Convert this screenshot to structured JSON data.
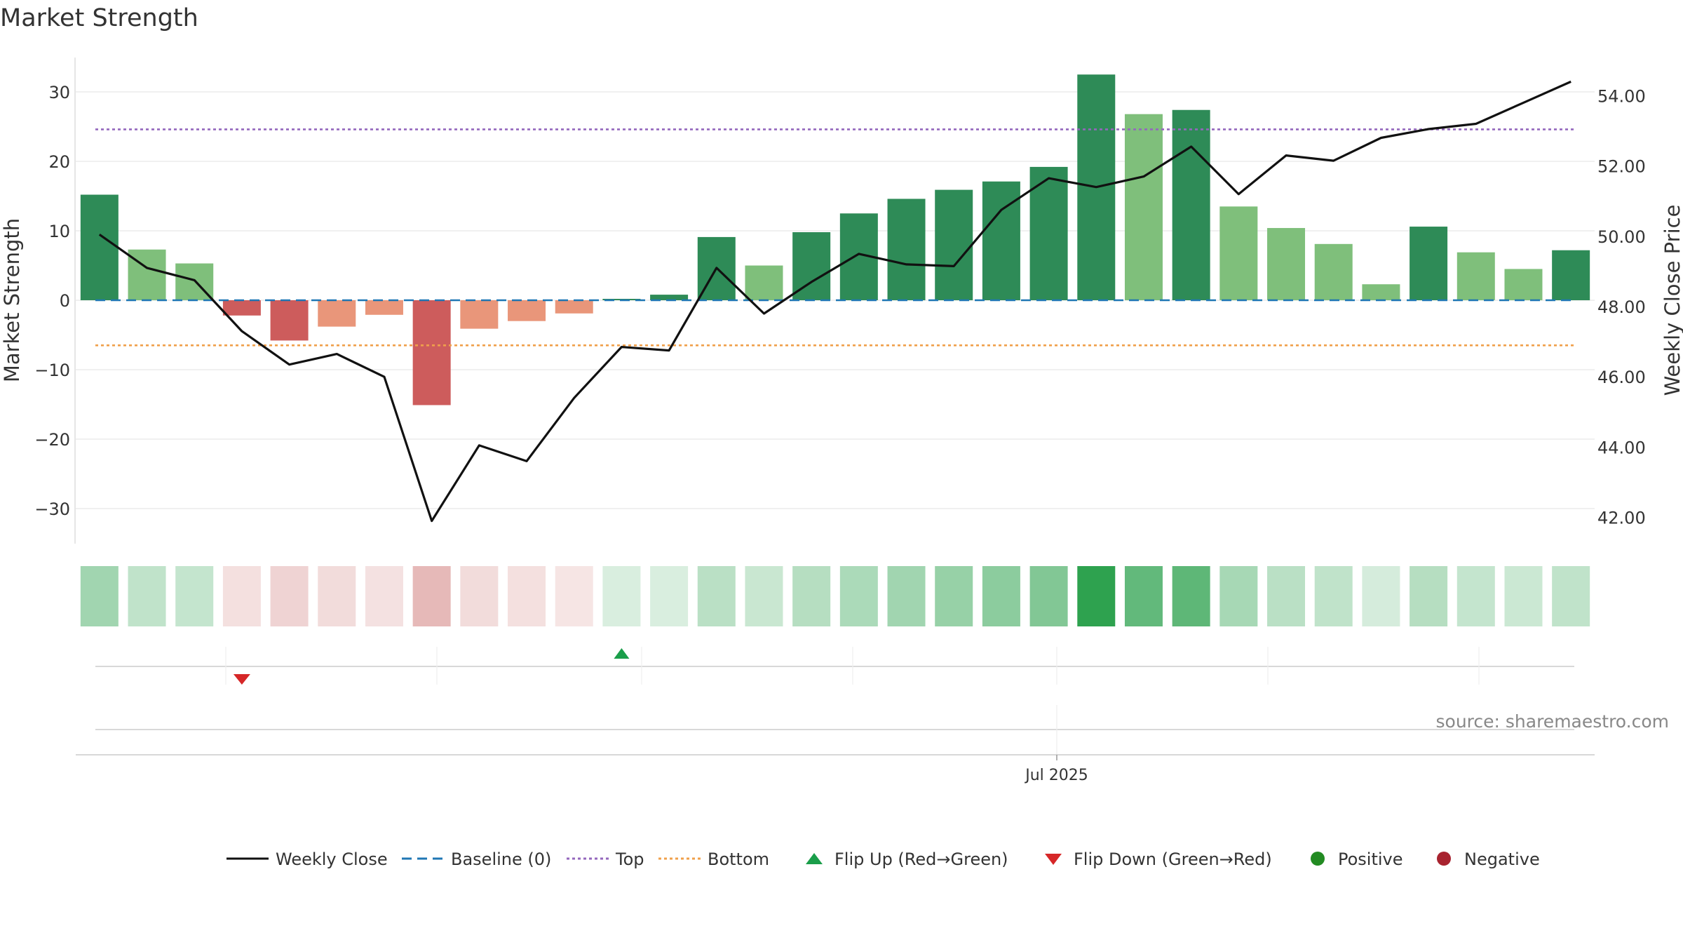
{
  "title": "Market Strength",
  "source": "source: sharemaestro.com",
  "chart_data": {
    "type": "bar",
    "title": "Market Strength",
    "ylabel": "Market Strength",
    "y2label": "Weekly Close Price",
    "ylim": [
      -35,
      35
    ],
    "y2lim": [
      40.7,
      55.0
    ],
    "yticks": [
      -30,
      -20,
      -10,
      0,
      10,
      20,
      30
    ],
    "yticklabels": [
      "−30",
      "−20",
      "−10",
      "0",
      "10",
      "20",
      "30"
    ],
    "y2ticks": [
      42,
      44,
      46,
      48,
      50,
      52,
      54
    ],
    "y2ticklabels": [
      "42.00",
      "44.00",
      "46.00",
      "48.00",
      "50.00",
      "52.00",
      "54.00"
    ],
    "xtick_label": "Jul 2025",
    "xtick_index": 20,
    "grid": true,
    "series": [
      {
        "name": "Market Strength",
        "values": [
          15.2,
          7.3,
          5.3,
          -2.2,
          -5.8,
          -3.8,
          -2.1,
          -15.1,
          -4.1,
          -3.0,
          -1.9,
          0.2,
          0.8,
          9.1,
          5.0,
          9.8,
          12.5,
          14.6,
          15.9,
          17.1,
          19.2,
          32.5,
          26.8,
          27.4,
          13.5,
          10.4,
          8.1,
          2.3,
          10.6,
          6.9,
          4.5,
          7.2
        ],
        "shades": [
          "dark-green",
          "light-green",
          "light-green",
          "red",
          "red",
          "light-red",
          "light-red",
          "red",
          "light-red",
          "light-red",
          "light-red",
          "dark-green",
          "dark-green",
          "dark-green",
          "light-green",
          "dark-green",
          "dark-green",
          "dark-green",
          "dark-green",
          "dark-green",
          "dark-green",
          "dark-green",
          "light-green",
          "dark-green",
          "light-green",
          "light-green",
          "light-green",
          "light-green",
          "dark-green",
          "light-green",
          "light-green",
          "dark-green"
        ]
      },
      {
        "name": "Weekly Close",
        "values": [
          50.05,
          49.1,
          48.75,
          47.3,
          46.35,
          46.65,
          46.0,
          41.9,
          44.05,
          43.6,
          45.4,
          46.85,
          46.75,
          49.1,
          47.8,
          48.7,
          49.5,
          49.2,
          49.15,
          50.75,
          51.65,
          51.4,
          51.7,
          52.55,
          51.2,
          52.3,
          52.15,
          52.8,
          53.05,
          53.2,
          53.8,
          54.4
        ]
      }
    ],
    "heat_strip": [
      {
        "tone": "green",
        "level": 0.45
      },
      {
        "tone": "green",
        "level": 0.3
      },
      {
        "tone": "green",
        "level": 0.28
      },
      {
        "tone": "red",
        "level": 0.18
      },
      {
        "tone": "red",
        "level": 0.25
      },
      {
        "tone": "red",
        "level": 0.2
      },
      {
        "tone": "red",
        "level": 0.17
      },
      {
        "tone": "red",
        "level": 0.4
      },
      {
        "tone": "red",
        "level": 0.2
      },
      {
        "tone": "red",
        "level": 0.18
      },
      {
        "tone": "red",
        "level": 0.15
      },
      {
        "tone": "green",
        "level": 0.18
      },
      {
        "tone": "green",
        "level": 0.18
      },
      {
        "tone": "green",
        "level": 0.33
      },
      {
        "tone": "green",
        "level": 0.26
      },
      {
        "tone": "green",
        "level": 0.35
      },
      {
        "tone": "green",
        "level": 0.4
      },
      {
        "tone": "green",
        "level": 0.45
      },
      {
        "tone": "green",
        "level": 0.5
      },
      {
        "tone": "green",
        "level": 0.55
      },
      {
        "tone": "green",
        "level": 0.6
      },
      {
        "tone": "green",
        "level": 1.0
      },
      {
        "tone": "green",
        "level": 0.75
      },
      {
        "tone": "green",
        "level": 0.77
      },
      {
        "tone": "green",
        "level": 0.42
      },
      {
        "tone": "green",
        "level": 0.33
      },
      {
        "tone": "green",
        "level": 0.3
      },
      {
        "tone": "green",
        "level": 0.2
      },
      {
        "tone": "green",
        "level": 0.35
      },
      {
        "tone": "green",
        "level": 0.28
      },
      {
        "tone": "green",
        "level": 0.25
      },
      {
        "tone": "green",
        "level": 0.3
      }
    ],
    "reference_lines": [
      {
        "name": "Baseline (0)",
        "value": 0,
        "color": "#1f77b4",
        "style": "dashed"
      },
      {
        "name": "Top",
        "value": 24.6,
        "color": "#9467bd",
        "style": "dotted"
      },
      {
        "name": "Bottom",
        "value": -6.5,
        "color": "#f0a04b",
        "style": "dotted"
      }
    ],
    "flips": [
      {
        "index": 3,
        "direction": "down"
      },
      {
        "index": 11,
        "direction": "up"
      }
    ],
    "colors": {
      "dark_green": "#2e8b57",
      "light_green": "#7fbf7b",
      "red": "#cd5c5c",
      "light_red": "#e9967a",
      "close_line": "#111111",
      "flip_up": "#1a9e4a",
      "flip_down": "#d62728",
      "positive": "#228b22",
      "negative": "#a8232f"
    },
    "legend": [
      {
        "label": "Weekly Close",
        "icon": "solid-line"
      },
      {
        "label": "Baseline (0)",
        "icon": "dashed-line"
      },
      {
        "label": "Top",
        "icon": "dotted-line"
      },
      {
        "label": "Bottom",
        "icon": "dotted-line"
      },
      {
        "label": "Flip Up (Red→Green)",
        "icon": "triangle-up"
      },
      {
        "label": "Flip Down (Green→Red)",
        "icon": "triangle-down"
      },
      {
        "label": "Positive",
        "icon": "circle"
      },
      {
        "label": "Negative",
        "icon": "circle"
      }
    ]
  }
}
